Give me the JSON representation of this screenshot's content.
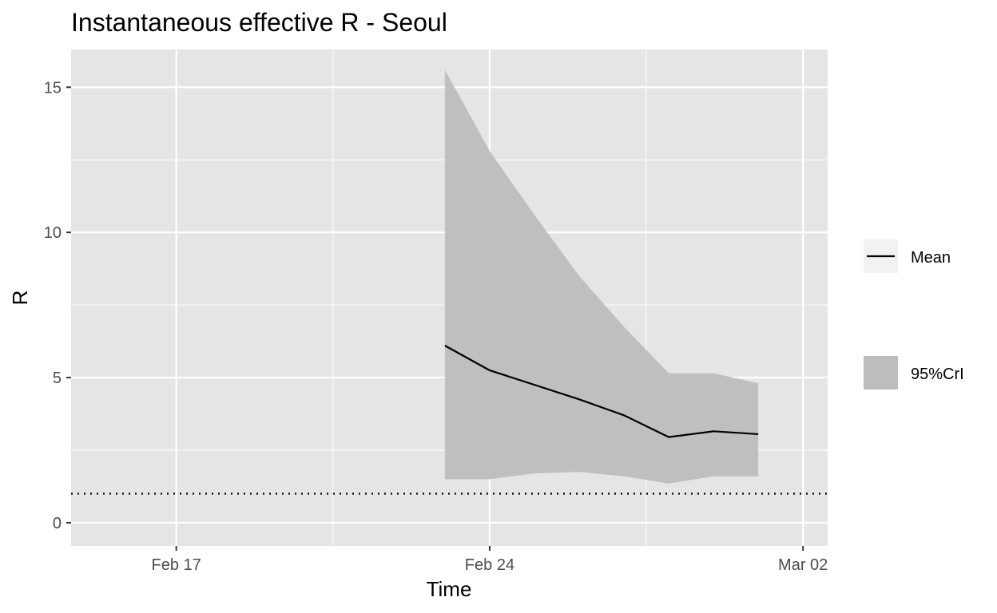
{
  "chart_data": {
    "type": "line",
    "title": "Instantaneous effective R -  Seoul",
    "xlabel": "Time",
    "ylabel": "R",
    "x_ticks": [
      "Feb 17",
      "Feb 24",
      "Mar 02"
    ],
    "y_ticks": [
      0,
      5,
      10,
      15
    ],
    "xlim": [
      "2020-02-15",
      "2020-03-02"
    ],
    "ylim": [
      -0.8,
      16.3
    ],
    "x": [
      "2020-02-23",
      "2020-02-24",
      "2020-02-25",
      "2020-02-26",
      "2020-02-27",
      "2020-02-28",
      "2020-02-29",
      "2020-03-01"
    ],
    "series": [
      {
        "name": "Mean",
        "kind": "line",
        "values": [
          6.1,
          5.25,
          4.75,
          4.25,
          3.7,
          2.95,
          3.15,
          3.05
        ]
      },
      {
        "name": "95%CrI",
        "kind": "band",
        "lower": [
          1.5,
          1.5,
          1.7,
          1.75,
          1.6,
          1.35,
          1.6,
          1.6
        ],
        "upper": [
          15.6,
          12.8,
          10.6,
          8.5,
          6.75,
          5.15,
          5.15,
          4.8
        ]
      }
    ],
    "reference_line": {
      "y": 1,
      "style": "dotted"
    },
    "legend": {
      "position": "right",
      "entries": [
        "Mean",
        "95%CrI"
      ]
    },
    "grid": true,
    "colors": {
      "panel": "#e5e5e5",
      "grid": "#ffffff",
      "band": "#bdbdbd",
      "line": "#000000",
      "tick_text": "#4d4d4d"
    }
  }
}
